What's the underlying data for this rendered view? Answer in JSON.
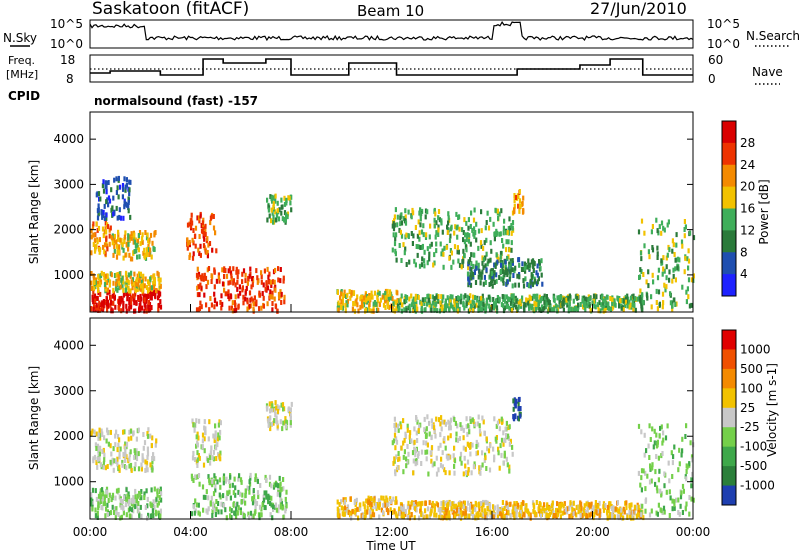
{
  "header": {
    "station": "Saskatoon (fitACF)",
    "beam": "Beam 10",
    "date": "27/Jun/2010"
  },
  "panels": {
    "nsky": {
      "left_label": "N.Sky",
      "left_ticks": [
        "10^5",
        "10^0"
      ],
      "right_ticks": [
        "10^5",
        "10^0"
      ],
      "right_label": "N.Search"
    },
    "freq": {
      "left_label_1": "Freq.",
      "left_label_2": "[MHz]",
      "left_ticks": [
        "18",
        "8"
      ],
      "right_ticks": [
        "60",
        "0"
      ],
      "right_label": "Nave"
    },
    "cpid": {
      "label": "CPID",
      "text": "normalsound (fast) -157"
    }
  },
  "chart_data": [
    {
      "type": "heatmap",
      "title": "",
      "parameter": "Power",
      "ylabel": "Slant Range [km]",
      "xlabel": "",
      "ylim": [
        180,
        4600
      ],
      "y_ticks": [
        "1000",
        "2000",
        "3000",
        "4000"
      ],
      "colorbar": {
        "label": "Power [dB]",
        "ticks": [
          "4",
          "8",
          "12",
          "16",
          "20",
          "24",
          "28"
        ],
        "colors": [
          "#1e22ff",
          "#1f4fb0",
          "#2a7a3a",
          "#3fae5a",
          "#f2c200",
          "#f48a00",
          "#ee3300",
          "#d90000"
        ]
      },
      "echo_regions": [
        {
          "t": [
            0.0,
            2.8
          ],
          "r": [
            250,
            700
          ],
          "level": 7
        },
        {
          "t": [
            0.0,
            2.8
          ],
          "r": [
            700,
            1100
          ],
          "level": 4
        },
        {
          "t": [
            0.0,
            0.8
          ],
          "r": [
            1500,
            2200
          ],
          "level": 5
        },
        {
          "t": [
            0.8,
            2.6
          ],
          "r": [
            1400,
            2000
          ],
          "level": 4
        },
        {
          "t": [
            0.2,
            1.6
          ],
          "r": [
            2300,
            3200
          ],
          "level": 1
        },
        {
          "t": [
            3.8,
            5.0
          ],
          "r": [
            1400,
            2400
          ],
          "level": 6
        },
        {
          "t": [
            4.2,
            7.7
          ],
          "r": [
            250,
            1200
          ],
          "level": 6
        },
        {
          "t": [
            7.0,
            8.0
          ],
          "r": [
            2200,
            2800
          ],
          "level": 3
        },
        {
          "t": [
            9.8,
            12.2
          ],
          "r": [
            250,
            700
          ],
          "level": 4
        },
        {
          "t": [
            12.0,
            16.8
          ],
          "r": [
            1200,
            2500
          ],
          "level": 3
        },
        {
          "t": [
            12.2,
            22.0
          ],
          "r": [
            250,
            600
          ],
          "level": 3
        },
        {
          "t": [
            15.0,
            18.0
          ],
          "r": [
            800,
            1400
          ],
          "level": 2
        },
        {
          "t": [
            16.8,
            17.2
          ],
          "r": [
            2400,
            2900
          ],
          "level": 5
        },
        {
          "t": [
            21.8,
            24.0
          ],
          "r": [
            300,
            2300
          ],
          "level": 3
        }
      ]
    },
    {
      "type": "heatmap",
      "title": "",
      "parameter": "Velocity",
      "ylabel": "Slant Range [km]",
      "xlabel": "Time UT",
      "ylim": [
        180,
        4600
      ],
      "x_ticks": [
        "00:00",
        "04:00",
        "08:00",
        "12:00",
        "16:00",
        "20:00",
        "00:00"
      ],
      "y_ticks": [
        "1000",
        "2000",
        "3000",
        "4000"
      ],
      "colorbar": {
        "label": "Velocity [m s-1]",
        "ticks": [
          "1000",
          "500",
          "100",
          "25",
          "-25",
          "-100",
          "-500",
          "-1000"
        ],
        "colors": [
          "#1e3fb0",
          "#2b7f3a",
          "#3ea84a",
          "#74d04a",
          "#c8c8c8",
          "#f2c200",
          "#f48a00",
          "#f05000",
          "#e00000"
        ]
      },
      "echo_regions": [
        {
          "t": [
            0.0,
            2.8
          ],
          "r": [
            250,
            900
          ],
          "level": 3
        },
        {
          "t": [
            0.0,
            2.6
          ],
          "r": [
            1300,
            2200
          ],
          "level": 4
        },
        {
          "t": [
            4.0,
            7.8
          ],
          "r": [
            250,
            1200
          ],
          "level": 3
        },
        {
          "t": [
            4.0,
            5.2
          ],
          "r": [
            1400,
            2400
          ],
          "level": 4
        },
        {
          "t": [
            7.0,
            8.0
          ],
          "r": [
            2200,
            2800
          ],
          "level": 4
        },
        {
          "t": [
            9.8,
            12.2
          ],
          "r": [
            250,
            700
          ],
          "level": 5
        },
        {
          "t": [
            12.0,
            16.8
          ],
          "r": [
            1200,
            2500
          ],
          "level": 4
        },
        {
          "t": [
            12.2,
            22.0
          ],
          "r": [
            250,
            600
          ],
          "level": 5
        },
        {
          "t": [
            16.8,
            17.2
          ],
          "r": [
            2400,
            2900
          ],
          "level": 0
        },
        {
          "t": [
            21.8,
            24.0
          ],
          "r": [
            300,
            2300
          ],
          "level": 3
        }
      ]
    }
  ]
}
